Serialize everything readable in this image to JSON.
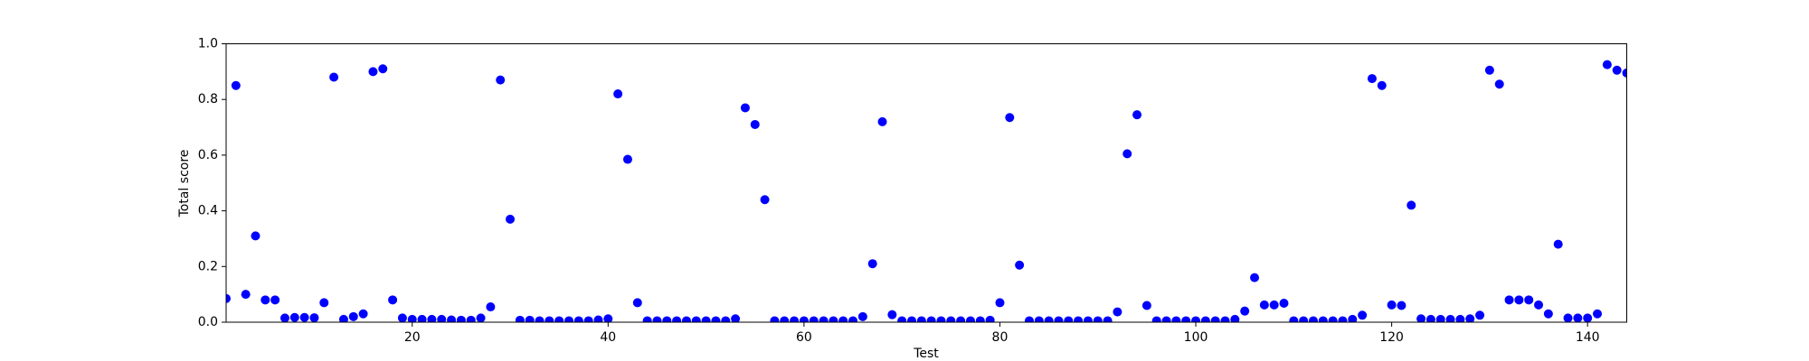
{
  "chart_data": {
    "type": "scatter",
    "xlabel": "Test",
    "ylabel": "Total score",
    "color": "#0000ff",
    "x": [
      1,
      2,
      3,
      4,
      5,
      6,
      7,
      8,
      9,
      10,
      11,
      12,
      13,
      14,
      15,
      16,
      17,
      18,
      19,
      20,
      21,
      22,
      23,
      24,
      25,
      26,
      27,
      28,
      29,
      30,
      31,
      32,
      33,
      34,
      35,
      36,
      37,
      38,
      39,
      40,
      41,
      42,
      43,
      44,
      45,
      46,
      47,
      48,
      49,
      50,
      51,
      52,
      53,
      54,
      55,
      56,
      57,
      58,
      59,
      60,
      61,
      62,
      63,
      64,
      65,
      66,
      67,
      68,
      69,
      70,
      71,
      72,
      73,
      74,
      75,
      76,
      77,
      78,
      79,
      80,
      81,
      82,
      83,
      84,
      85,
      86,
      87,
      88,
      89,
      90,
      91,
      92,
      93,
      94,
      95,
      96,
      97,
      98,
      99,
      100,
      101,
      102,
      103,
      104,
      105,
      106,
      107,
      108,
      109,
      110,
      111,
      112,
      113,
      114,
      115,
      116,
      117,
      118,
      119,
      120,
      121,
      122,
      123,
      124,
      125,
      126,
      127,
      128,
      129,
      130,
      131,
      132,
      133,
      134,
      135,
      136,
      137,
      138,
      139,
      140,
      141,
      142,
      143,
      144
    ],
    "values": [
      0.085,
      0.85,
      0.1,
      0.31,
      0.08,
      0.08,
      0.015,
      0.017,
      0.017,
      0.016,
      0.07,
      0.88,
      0.01,
      0.02,
      0.03,
      0.9,
      0.91,
      0.08,
      0.015,
      0.01,
      0.01,
      0.01,
      0.01,
      0.008,
      0.007,
      0.007,
      0.015,
      0.055,
      0.87,
      0.37,
      0.007,
      0.007,
      0.005,
      0.005,
      0.005,
      0.005,
      0.005,
      0.005,
      0.008,
      0.012,
      0.82,
      0.585,
      0.07,
      0.005,
      0.005,
      0.005,
      0.005,
      0.005,
      0.005,
      0.005,
      0.005,
      0.005,
      0.012,
      0.77,
      0.71,
      0.44,
      0.005,
      0.005,
      0.005,
      0.005,
      0.005,
      0.005,
      0.005,
      0.005,
      0.005,
      0.02,
      0.21,
      0.72,
      0.027,
      0.005,
      0.005,
      0.005,
      0.005,
      0.005,
      0.005,
      0.005,
      0.005,
      0.005,
      0.007,
      0.07,
      0.735,
      0.205,
      0.005,
      0.005,
      0.005,
      0.005,
      0.005,
      0.005,
      0.005,
      0.005,
      0.005,
      0.037,
      0.605,
      0.745,
      0.06,
      0.005,
      0.005,
      0.005,
      0.005,
      0.005,
      0.005,
      0.005,
      0.005,
      0.01,
      0.04,
      0.16,
      0.062,
      0.062,
      0.068,
      0.005,
      0.005,
      0.005,
      0.005,
      0.005,
      0.005,
      0.01,
      0.025,
      0.875,
      0.85,
      0.062,
      0.06,
      0.42,
      0.012,
      0.01,
      0.01,
      0.01,
      0.01,
      0.012,
      0.025,
      0.905,
      0.855,
      0.08,
      0.08,
      0.08,
      0.062,
      0.03,
      0.28,
      0.015,
      0.015,
      0.015,
      0.03,
      0.925,
      0.905,
      0.895
    ],
    "xlim": [
      1,
      144
    ],
    "ylim": [
      0,
      1
    ],
    "xticks": [
      20,
      40,
      60,
      80,
      100,
      120,
      140
    ],
    "yticks": [
      {
        "value": 0,
        "label": "0.0"
      },
      0.2,
      0.4,
      0.6,
      0.8,
      {
        "value": 1,
        "label": "1.0"
      }
    ]
  }
}
